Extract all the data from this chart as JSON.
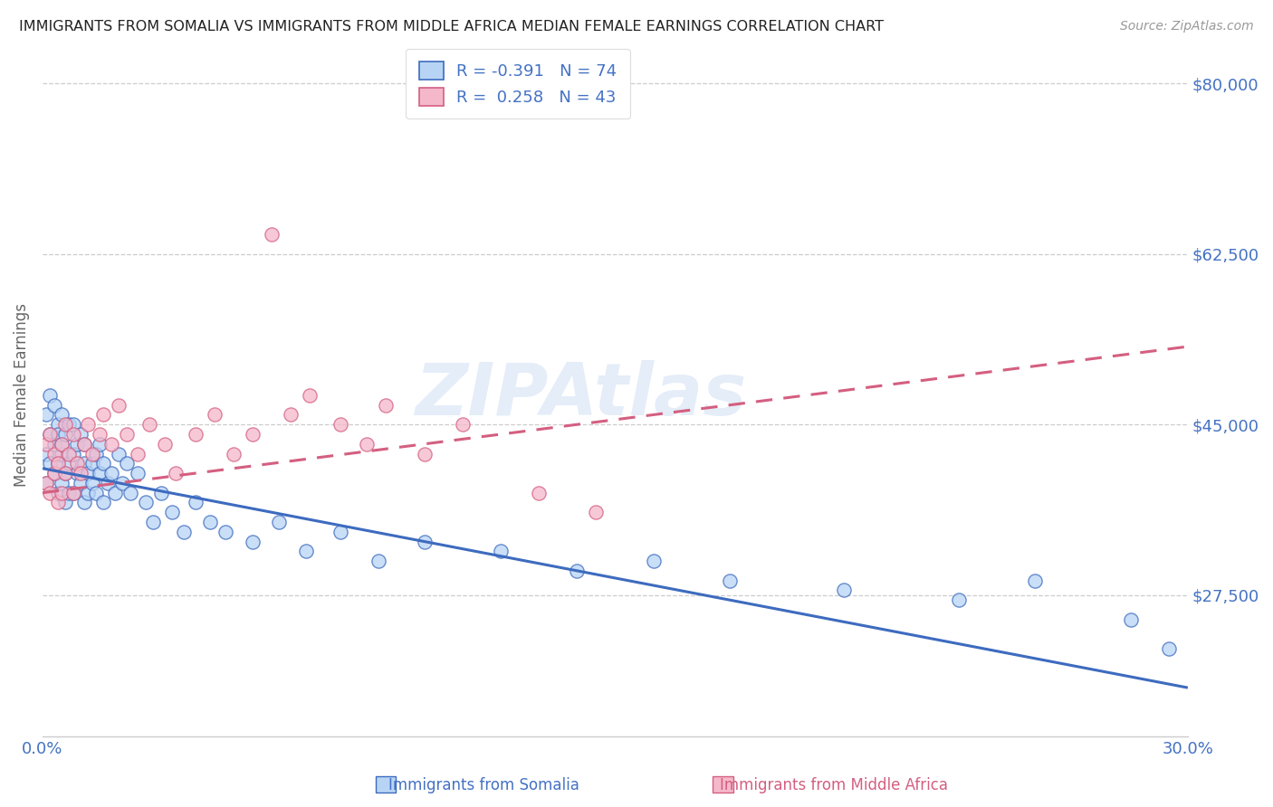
{
  "title": "IMMIGRANTS FROM SOMALIA VS IMMIGRANTS FROM MIDDLE AFRICA MEDIAN FEMALE EARNINGS CORRELATION CHART",
  "source": "Source: ZipAtlas.com",
  "ylabel": "Median Female Earnings",
  "xlim": [
    0.0,
    0.3
  ],
  "ylim": [
    13000,
    83000
  ],
  "color_somalia": "#b8d4f5",
  "color_somalia_line": "#3d6bbf",
  "color_middle_africa": "#f5b8cb",
  "color_middle_africa_line": "#d45f80",
  "color_text": "#4472c4",
  "watermark_text": "ZIPAtlas",
  "label_somalia": "Immigrants from Somalia",
  "label_middle_africa": "Immigrants from Middle Africa",
  "legend_line1": "R = -0.391   N = 74",
  "legend_line2": "R =  0.258   N = 43",
  "somalia_trend_x0": 0.0,
  "somalia_trend_y0": 40500,
  "somalia_trend_x1": 0.3,
  "somalia_trend_y1": 18000,
  "middle_africa_trend_x0": 0.0,
  "middle_africa_trend_y0": 38000,
  "middle_africa_trend_x1": 0.3,
  "middle_africa_trend_y1": 53000,
  "somalia_x": [
    0.001,
    0.001,
    0.001,
    0.002,
    0.002,
    0.002,
    0.003,
    0.003,
    0.003,
    0.004,
    0.004,
    0.004,
    0.004,
    0.005,
    0.005,
    0.005,
    0.005,
    0.006,
    0.006,
    0.006,
    0.007,
    0.007,
    0.007,
    0.008,
    0.008,
    0.008,
    0.009,
    0.009,
    0.01,
    0.01,
    0.011,
    0.011,
    0.011,
    0.012,
    0.012,
    0.013,
    0.013,
    0.014,
    0.014,
    0.015,
    0.015,
    0.016,
    0.016,
    0.017,
    0.018,
    0.019,
    0.02,
    0.021,
    0.022,
    0.023,
    0.025,
    0.027,
    0.029,
    0.031,
    0.034,
    0.037,
    0.04,
    0.044,
    0.048,
    0.055,
    0.062,
    0.069,
    0.078,
    0.088,
    0.1,
    0.12,
    0.14,
    0.16,
    0.18,
    0.21,
    0.24,
    0.26,
    0.285,
    0.295
  ],
  "somalia_y": [
    42000,
    46000,
    39000,
    44000,
    48000,
    41000,
    43000,
    47000,
    40000,
    45000,
    41000,
    38000,
    44000,
    42000,
    46000,
    39000,
    43000,
    40000,
    44000,
    37000,
    45000,
    41000,
    38000,
    42000,
    38000,
    45000,
    40000,
    43000,
    39000,
    44000,
    41000,
    37000,
    43000,
    40000,
    38000,
    41000,
    39000,
    42000,
    38000,
    40000,
    43000,
    37000,
    41000,
    39000,
    40000,
    38000,
    42000,
    39000,
    41000,
    38000,
    40000,
    37000,
    35000,
    38000,
    36000,
    34000,
    37000,
    35000,
    34000,
    33000,
    35000,
    32000,
    34000,
    31000,
    33000,
    32000,
    30000,
    31000,
    29000,
    28000,
    27000,
    29000,
    25000,
    22000
  ],
  "middle_africa_x": [
    0.001,
    0.001,
    0.002,
    0.002,
    0.003,
    0.003,
    0.004,
    0.004,
    0.005,
    0.005,
    0.006,
    0.006,
    0.007,
    0.008,
    0.008,
    0.009,
    0.01,
    0.011,
    0.012,
    0.013,
    0.015,
    0.016,
    0.018,
    0.02,
    0.022,
    0.025,
    0.028,
    0.032,
    0.035,
    0.04,
    0.045,
    0.05,
    0.055,
    0.06,
    0.065,
    0.07,
    0.078,
    0.085,
    0.09,
    0.1,
    0.11,
    0.13,
    0.145
  ],
  "middle_africa_y": [
    39000,
    43000,
    38000,
    44000,
    40000,
    42000,
    37000,
    41000,
    43000,
    38000,
    40000,
    45000,
    42000,
    38000,
    44000,
    41000,
    40000,
    43000,
    45000,
    42000,
    44000,
    46000,
    43000,
    47000,
    44000,
    42000,
    45000,
    43000,
    40000,
    44000,
    46000,
    42000,
    44000,
    64500,
    46000,
    48000,
    45000,
    43000,
    47000,
    42000,
    45000,
    38000,
    36000
  ]
}
